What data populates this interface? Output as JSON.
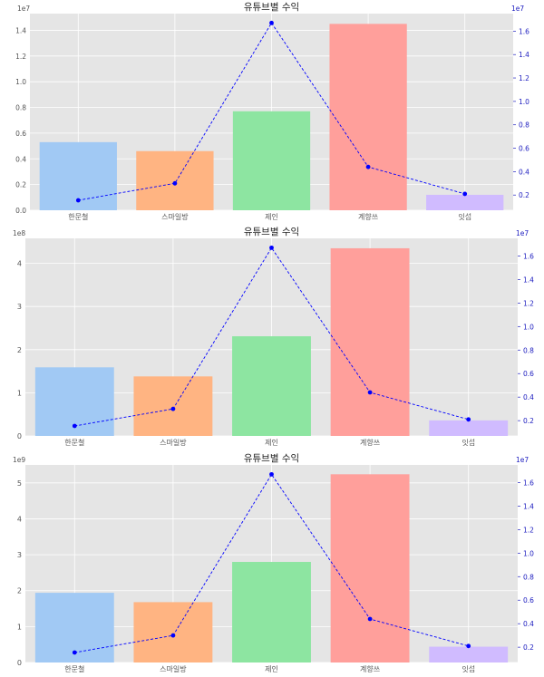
{
  "figure": {
    "background": "#ffffff",
    "plot_background": "#e5e5e5",
    "grid_color": "#ffffff"
  },
  "colors": {
    "bars": [
      "#a1c9f4",
      "#ffb482",
      "#8de5a1",
      "#ff9f9b",
      "#d0bbff"
    ],
    "line": "#0000ff",
    "right_axis": "#2020c0"
  },
  "chart_data": [
    {
      "type": "bar",
      "title": "유튜브별 수익",
      "categories": [
        "한문철",
        "스마일방",
        "제인",
        "계향쓰",
        "잇섭"
      ],
      "series": [
        {
          "axis": "left",
          "values": [
            5300000,
            4600000,
            7700000,
            14500000,
            1200000
          ]
        },
        {
          "axis": "right",
          "style": "dashed line with markers",
          "values": [
            1550000,
            3000000,
            16700000,
            4400000,
            2100000
          ]
        }
      ],
      "left_axis": {
        "offset_label": "1e7",
        "ylim": [
          0,
          15300000
        ],
        "ticks": [
          0,
          2000000,
          4000000,
          6000000,
          8000000,
          10000000,
          12000000,
          14000000
        ],
        "tick_labels": [
          "0.0",
          "0.2",
          "0.4",
          "0.6",
          "0.8",
          "1.0",
          "1.2",
          "1.4"
        ]
      },
      "right_axis": {
        "offset_label": "1e7",
        "ylim": [
          700000,
          17500000
        ],
        "ticks": [
          2000000,
          4000000,
          6000000,
          8000000,
          10000000,
          12000000,
          14000000,
          16000000
        ],
        "tick_labels": [
          "0.2",
          "0.4",
          "0.6",
          "0.8",
          "1.0",
          "1.2",
          "1.4",
          "1.6"
        ]
      },
      "grid": true,
      "xlabel": "",
      "ylabel": ""
    },
    {
      "type": "bar",
      "title": "유튜브별 수익",
      "categories": [
        "한문철",
        "스마일방",
        "제인",
        "계향쓰",
        "잇섭"
      ],
      "series": [
        {
          "axis": "left",
          "values": [
            159000000,
            138000000,
            231000000,
            435000000,
            36000000
          ]
        },
        {
          "axis": "right",
          "style": "dashed line with markers",
          "values": [
            1550000,
            3000000,
            16700000,
            4400000,
            2100000
          ]
        }
      ],
      "left_axis": {
        "offset_label": "1e8",
        "ylim": [
          0,
          458000000
        ],
        "ticks": [
          0,
          100000000,
          200000000,
          300000000,
          400000000
        ],
        "tick_labels": [
          "0",
          "1",
          "2",
          "3",
          "4"
        ]
      },
      "right_axis": {
        "offset_label": "1e7",
        "ylim": [
          700000,
          17500000
        ],
        "ticks": [
          2000000,
          4000000,
          6000000,
          8000000,
          10000000,
          12000000,
          14000000,
          16000000
        ],
        "tick_labels": [
          "0.2",
          "0.4",
          "0.6",
          "0.8",
          "1.0",
          "1.2",
          "1.4",
          "1.6"
        ]
      },
      "grid": true,
      "xlabel": "",
      "ylabel": ""
    },
    {
      "type": "bar",
      "title": "유튜브별 수익",
      "categories": [
        "한문철",
        "스마일방",
        "제인",
        "계향쓰",
        "잇섭"
      ],
      "series": [
        {
          "axis": "left",
          "values": [
            1940000000,
            1680000000,
            2800000000,
            5240000000,
            440000000
          ]
        },
        {
          "axis": "right",
          "style": "dashed line with markers",
          "values": [
            1550000,
            3000000,
            16700000,
            4400000,
            2100000
          ]
        }
      ],
      "left_axis": {
        "offset_label": "1e9",
        "ylim": [
          0,
          5500000000
        ],
        "ticks": [
          0,
          1000000000,
          2000000000,
          3000000000,
          4000000000,
          5000000000
        ],
        "tick_labels": [
          "0",
          "1",
          "2",
          "3",
          "4",
          "5"
        ]
      },
      "right_axis": {
        "offset_label": "1e7",
        "ylim": [
          700000,
          17500000
        ],
        "ticks": [
          2000000,
          4000000,
          6000000,
          8000000,
          10000000,
          12000000,
          14000000,
          16000000
        ],
        "tick_labels": [
          "0.2",
          "0.4",
          "0.6",
          "0.8",
          "1.0",
          "1.2",
          "1.4",
          "1.6"
        ]
      },
      "grid": true,
      "xlabel": "",
      "ylabel": ""
    }
  ]
}
